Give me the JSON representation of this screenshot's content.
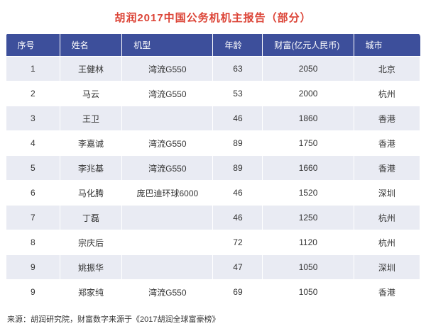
{
  "title": "胡润2017中国公务机机主报告（部分）",
  "source_note": "来源：胡润研究院，财富数字来源于《2017胡润全球富豪榜》",
  "colors": {
    "title_color": "#dc4437",
    "header_bg": "#3d4f9b",
    "row_alt_bg": "#e9ebf3",
    "row_bg": "#ffffff",
    "header_text": "#ffffff",
    "cell_text": "#333333"
  },
  "chart_data": {
    "type": "table",
    "title": "胡润2017中国公务机机主报告（部分）",
    "columns": [
      "序号",
      "姓名",
      "机型",
      "年龄",
      "财富(亿元人民币)",
      "城市"
    ],
    "rows": [
      [
        "1",
        "王健林",
        "湾流G550",
        "63",
        "2050",
        "北京"
      ],
      [
        "2",
        "马云",
        "湾流G550",
        "53",
        "2000",
        "杭州"
      ],
      [
        "3",
        "王卫",
        "",
        "46",
        "1860",
        "香港"
      ],
      [
        "4",
        "李嘉诚",
        "湾流G550",
        "89",
        "1750",
        "香港"
      ],
      [
        "5",
        "李兆基",
        "湾流G550",
        "89",
        "1660",
        "香港"
      ],
      [
        "6",
        "马化腾",
        "庞巴迪环球6000",
        "46",
        "1520",
        "深圳"
      ],
      [
        "7",
        "丁磊",
        "",
        "46",
        "1250",
        "杭州"
      ],
      [
        "8",
        "宗庆后",
        "",
        "72",
        "1120",
        "杭州"
      ],
      [
        "9",
        "姚振华",
        "",
        "47",
        "1050",
        "深圳"
      ],
      [
        "9",
        "郑家纯",
        "湾流G550",
        "69",
        "1050",
        "香港"
      ]
    ],
    "source": "来源：胡润研究院，财富数字来源于《2017胡润全球富豪榜》",
    "layout": {
      "grid": false,
      "legend": "none",
      "striped_rows": true
    }
  }
}
